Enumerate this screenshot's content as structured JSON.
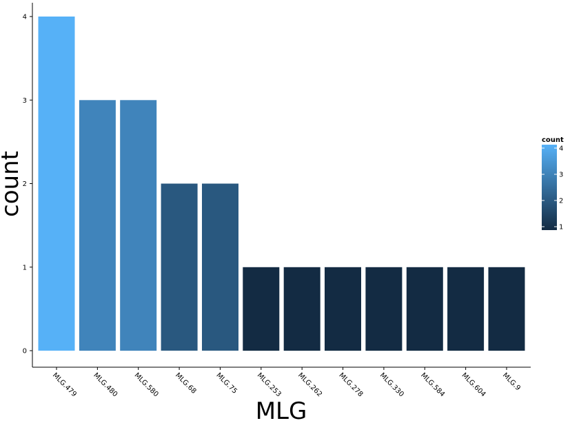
{
  "chart_data": {
    "type": "bar",
    "categories": [
      "MLG.479",
      "MLG.480",
      "MLG.580",
      "MLG.68",
      "MLG.75",
      "MLG.253",
      "MLG.262",
      "MLG.278",
      "MLG.330",
      "MLG.584",
      "MLG.604",
      "MLG.9"
    ],
    "values": [
      4,
      3,
      3,
      2,
      2,
      1,
      1,
      1,
      1,
      1,
      1,
      1
    ],
    "xlabel": "MLG",
    "ylabel": "count",
    "ylim": [
      0,
      4
    ],
    "yticks": [
      "0",
      "1",
      "2",
      "3",
      "4"
    ],
    "grid": false,
    "legend": {
      "title": "count",
      "position": "right",
      "ticks": [
        "1",
        "2",
        "3",
        "4"
      ],
      "color_low": "#132B43",
      "color_high": "#56B1F7"
    }
  }
}
